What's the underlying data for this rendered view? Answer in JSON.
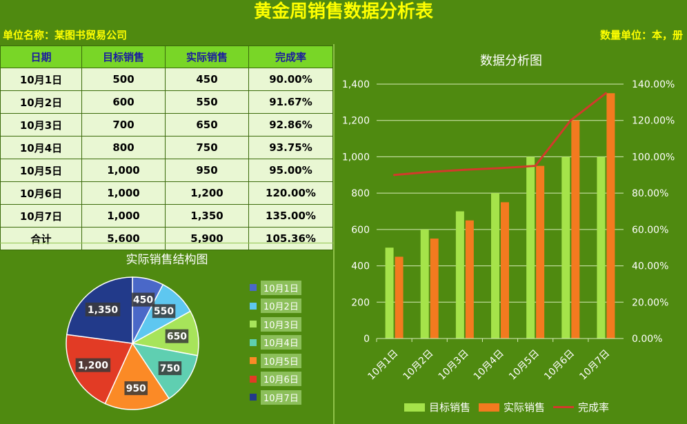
{
  "title": "黄金周销售数据分析表",
  "unit_left": "单位名称：某图书贸易公司",
  "unit_right": "数量单位：本，册",
  "table": {
    "headers": [
      "日期",
      "目标销售",
      "实际销售",
      "完成率"
    ],
    "rows": [
      [
        "10月1日",
        "500",
        "450",
        "90.00%"
      ],
      [
        "10月2日",
        "600",
        "550",
        "91.67%"
      ],
      [
        "10月3日",
        "700",
        "650",
        "92.86%"
      ],
      [
        "10月4日",
        "800",
        "750",
        "93.75%"
      ],
      [
        "10月5日",
        "1,000",
        "950",
        "95.00%"
      ],
      [
        "10月6日",
        "1,000",
        "1,200",
        "120.00%"
      ],
      [
        "10月7日",
        "1,000",
        "1,350",
        "135.00%"
      ],
      [
        "合计",
        "5,600",
        "5,900",
        "105.36%"
      ]
    ]
  },
  "colors": {
    "target": "#a5e34a",
    "actual": "#f37a1f",
    "rate": "#d33a2b",
    "pie": [
      "#4a68c8",
      "#5ec7f0",
      "#a7e45a",
      "#5fcfb1",
      "#fb8a26",
      "#e23b25",
      "#223a8a"
    ]
  },
  "chart_data": [
    {
      "type": "pie",
      "title": "实际销售结构图",
      "categories": [
        "10月1日",
        "10月2日",
        "10月3日",
        "10月4日",
        "10月5日",
        "10月6日",
        "10月7日"
      ],
      "values": [
        450,
        550,
        650,
        750,
        950,
        1200,
        1350
      ],
      "data_labels": [
        "450",
        "550",
        "650",
        "750",
        "950",
        "1,200",
        "1,350"
      ],
      "legend": "right"
    },
    {
      "type": "bar",
      "title": "数据分析图",
      "categories": [
        "10月1日",
        "10月2日",
        "10月3日",
        "10月4日",
        "10月5日",
        "10月6日",
        "10月7日"
      ],
      "series": [
        {
          "name": "目标销售",
          "type": "bar",
          "axis": "left",
          "values": [
            500,
            600,
            700,
            800,
            1000,
            1000,
            1000
          ]
        },
        {
          "name": "实际销售",
          "type": "bar",
          "axis": "left",
          "values": [
            450,
            550,
            650,
            750,
            950,
            1200,
            1350
          ]
        },
        {
          "name": "完成率",
          "type": "line",
          "axis": "right",
          "values": [
            90.0,
            91.67,
            92.86,
            93.75,
            95.0,
            120.0,
            135.0
          ]
        }
      ],
      "ylim": [
        0,
        1400
      ],
      "yticks": [
        "0",
        "200",
        "400",
        "600",
        "800",
        "1,000",
        "1,200",
        "1,400"
      ],
      "y2lim": [
        0,
        140
      ],
      "y2ticks": [
        "0.00%",
        "20.00%",
        "40.00%",
        "60.00%",
        "80.00%",
        "100.00%",
        "120.00%",
        "140.00%"
      ],
      "grid": true,
      "legend": "bottom"
    }
  ]
}
